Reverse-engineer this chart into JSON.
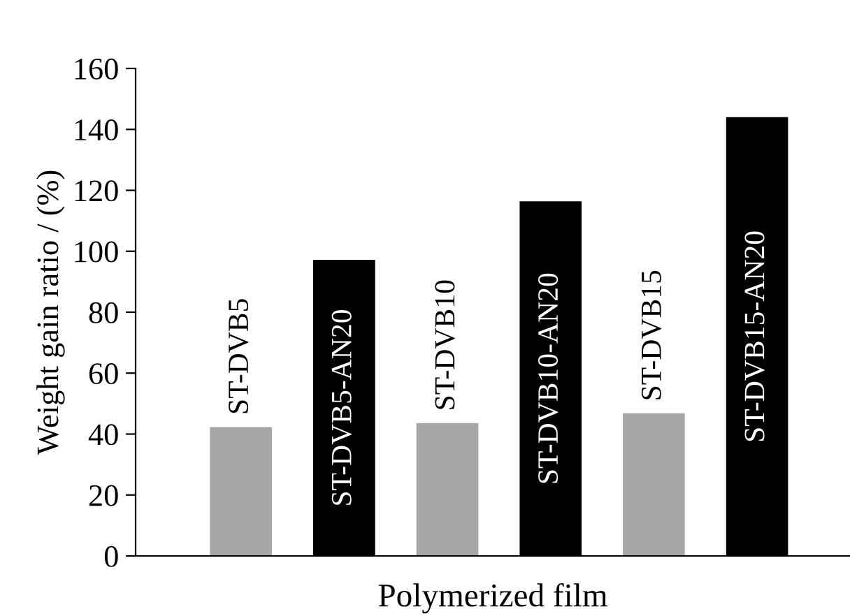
{
  "chart_data": {
    "type": "bar",
    "xlabel": "Polymerized film",
    "ylabel": "Weight gain ratio / (%)",
    "categories": [
      "ST-DVB5",
      "ST-DVB5-AN20",
      "ST-DVB10",
      "ST-DVB10-AN20",
      "ST-DVB15",
      "ST-DVB15-AN20"
    ],
    "values": [
      42.3,
      97.2,
      43.6,
      116.4,
      46.8,
      144
    ],
    "colors": [
      "#a6a6a6",
      "#000000",
      "#a6a6a6",
      "#000000",
      "#a6a6a6",
      "#000000"
    ],
    "ylim": [
      0,
      160
    ],
    "yticks": [
      0,
      20,
      40,
      60,
      80,
      100,
      120,
      140,
      160
    ],
    "grid": false
  }
}
